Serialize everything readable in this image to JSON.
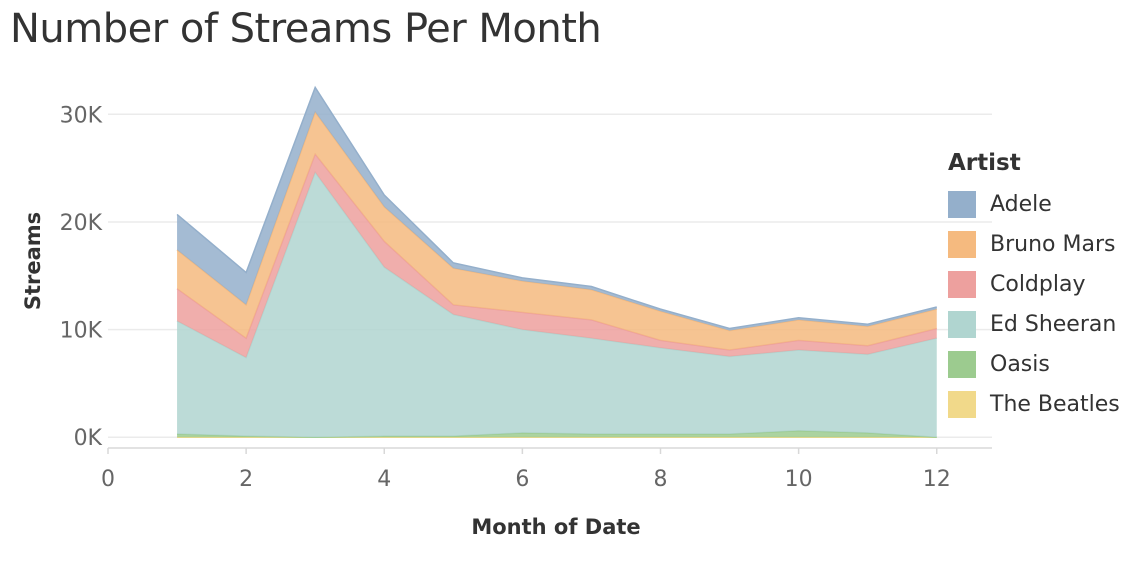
{
  "chart_data": {
    "type": "area",
    "title": "Number of Streams Per Month",
    "xlabel": "Month of Date",
    "ylabel": "Streams",
    "x": [
      1,
      2,
      3,
      4,
      5,
      6,
      7,
      8,
      9,
      10,
      11,
      12
    ],
    "xlim": [
      0,
      12.8
    ],
    "ylim": [
      -1000,
      33000
    ],
    "x_ticks": [
      0,
      2,
      4,
      6,
      8,
      10,
      12
    ],
    "y_ticks": [
      {
        "value": 0,
        "label": "0K"
      },
      {
        "value": 10000,
        "label": "10K"
      },
      {
        "value": 20000,
        "label": "20K"
      },
      {
        "value": 30000,
        "label": "30K"
      }
    ],
    "stacked": true,
    "grid": "horizontal",
    "legend_title": "Artist",
    "legend_position": "right",
    "series": [
      {
        "name": "The Beatles",
        "color": "#F1D98A",
        "values": [
          0,
          0,
          0,
          0,
          0,
          0,
          0,
          0,
          0,
          0,
          0,
          0
        ]
      },
      {
        "name": "Oasis",
        "color": "#9CCB8F",
        "values": [
          300,
          100,
          0,
          100,
          100,
          400,
          300,
          300,
          300,
          600,
          400,
          0
        ]
      },
      {
        "name": "Ed Sheeran",
        "color": "#B0D5D0",
        "values": [
          10500,
          7300,
          24600,
          15700,
          11300,
          9600,
          8900,
          8000,
          7200,
          7500,
          7300,
          9200
        ]
      },
      {
        "name": "Coldplay",
        "color": "#EDA09E",
        "values": [
          3000,
          1800,
          1700,
          2400,
          900,
          1600,
          1700,
          700,
          600,
          900,
          800,
          900
        ]
      },
      {
        "name": "Bruno Mars",
        "color": "#F5BA7F",
        "values": [
          3600,
          3100,
          3900,
          3200,
          3400,
          2900,
          2800,
          2700,
          1800,
          1900,
          1800,
          1800
        ]
      },
      {
        "name": "Adele",
        "color": "#94AFCB",
        "values": [
          3300,
          3000,
          2300,
          1100,
          500,
          300,
          300,
          200,
          200,
          200,
          200,
          200
        ]
      }
    ],
    "legend_order": [
      "Adele",
      "Bruno Mars",
      "Coldplay",
      "Ed Sheeran",
      "Oasis",
      "The Beatles"
    ]
  }
}
